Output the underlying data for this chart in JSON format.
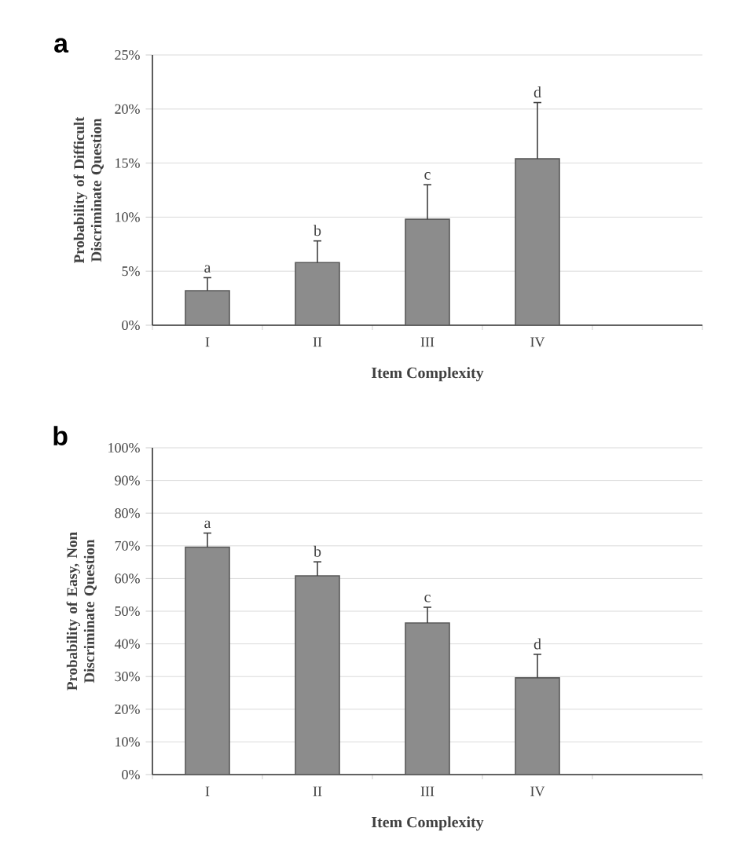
{
  "chart_data": [
    {
      "type": "bar",
      "title": "a",
      "xlabel": "Item Complexity",
      "ylabel": "Probability of Difficult Discriminate Question",
      "categories": [
        "I",
        "II",
        "III",
        "IV",
        null
      ],
      "values": [
        3.2,
        5.8,
        9.8,
        15.4,
        null
      ],
      "errors": [
        1.2,
        2.0,
        3.2,
        5.2,
        null
      ],
      "color": "#8c8c8c",
      "ylim": [
        0,
        25
      ],
      "yticks": [
        {
          "value": 0,
          "label": "0%"
        },
        {
          "value": 5,
          "label": "5%"
        },
        {
          "value": 10,
          "label": "10%"
        },
        {
          "value": 15,
          "label": "15%"
        },
        {
          "value": 20,
          "label": "20%"
        },
        {
          "value": 25,
          "label": "25%"
        }
      ],
      "grid": "y",
      "annotations": [
        {
          "text": "a",
          "x": "I",
          "y": 4.4
        },
        {
          "text": "b",
          "x": "II",
          "y": 7.8
        },
        {
          "text": "c",
          "x": "III",
          "y": 13.0
        },
        {
          "text": "d",
          "x": "IV",
          "y": 20.6
        }
      ]
    },
    {
      "type": "bar",
      "title": "b",
      "xlabel": "Item Complexity",
      "ylabel": "Probability of Easy, Non Discriminate Question",
      "categories": [
        "I",
        "II",
        "III",
        "IV",
        null
      ],
      "values": [
        69.6,
        60.8,
        46.4,
        29.6,
        null
      ],
      "errors": [
        4.3,
        4.3,
        4.8,
        7.2,
        null
      ],
      "color": "#8c8c8c",
      "ylim": [
        0,
        100
      ],
      "yticks": [
        {
          "value": 0,
          "label": "0%"
        },
        {
          "value": 10,
          "label": "10%"
        },
        {
          "value": 20,
          "label": "20%"
        },
        {
          "value": 30,
          "label": "30%"
        },
        {
          "value": 40,
          "label": "40%"
        },
        {
          "value": 50,
          "label": "50%"
        },
        {
          "value": 60,
          "label": "60%"
        },
        {
          "value": 70,
          "label": "70%"
        },
        {
          "value": 80,
          "label": "80%"
        },
        {
          "value": 90,
          "label": "90%"
        },
        {
          "value": 100,
          "label": "100%"
        }
      ],
      "grid": "y",
      "annotations": [
        {
          "text": "a",
          "x": "I",
          "y": 73.9
        },
        {
          "text": "b",
          "x": "II",
          "y": 65.1
        },
        {
          "text": "c",
          "x": "III",
          "y": 51.2
        },
        {
          "text": "d",
          "x": "IV",
          "y": 36.8
        }
      ]
    }
  ]
}
